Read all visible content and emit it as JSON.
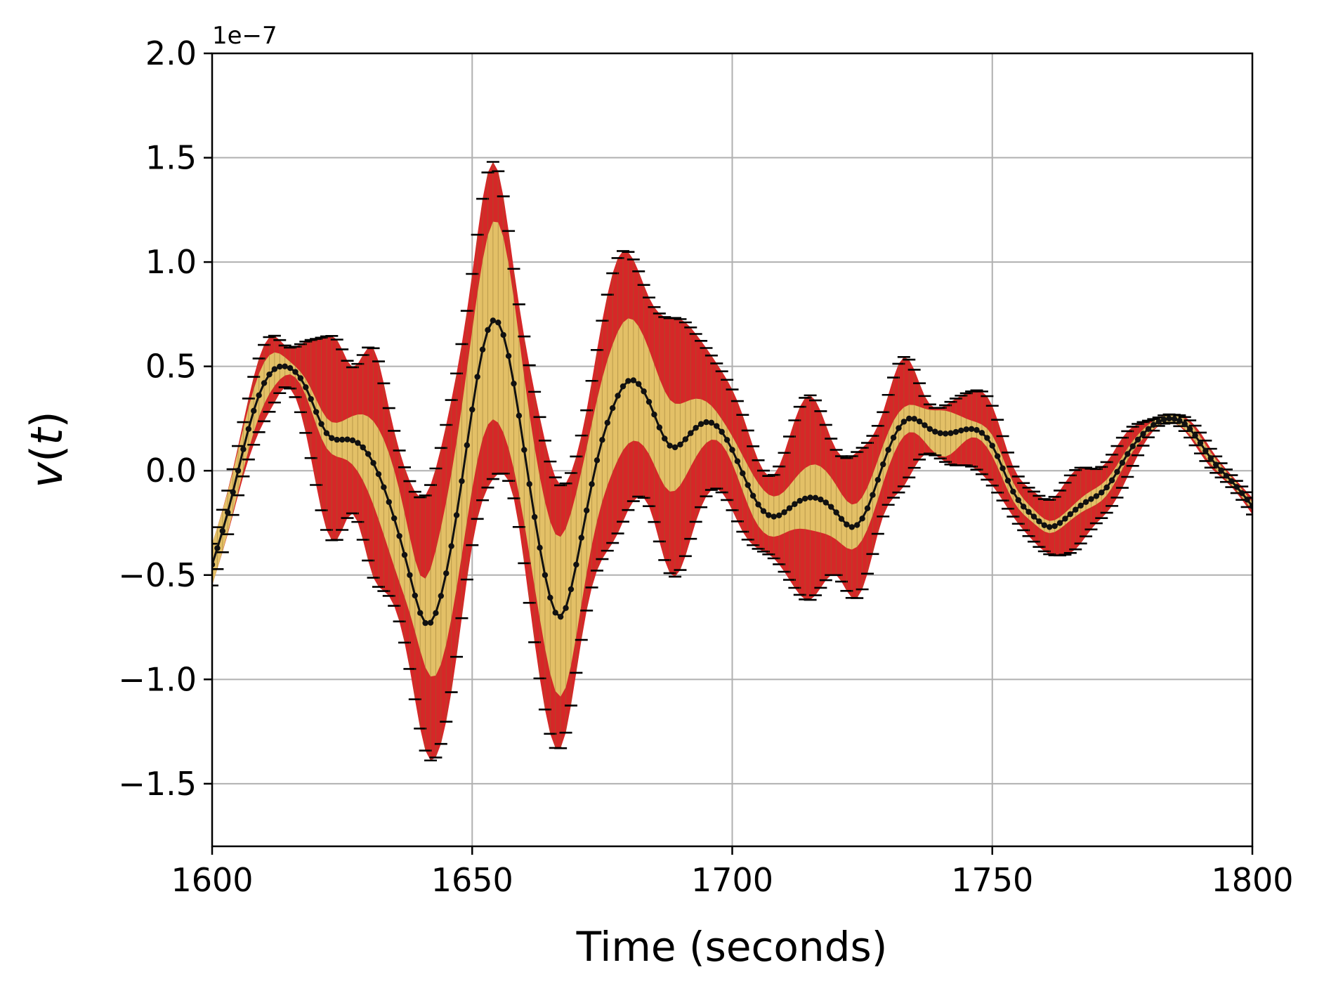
{
  "chart_data": {
    "type": "line",
    "xlabel": "Time (seconds)",
    "ylabel_func": "v",
    "ylabel_arg": "t",
    "y_offset_label": "1e−7",
    "xlim": [
      1600,
      1800
    ],
    "ylim": [
      -1.8,
      2.0
    ],
    "y_scale_exponent": -7,
    "grid": true,
    "x_ticks": [
      1600,
      1650,
      1700,
      1750,
      1800
    ],
    "x_tick_labels": [
      "1600",
      "1650",
      "1700",
      "1750",
      "1800"
    ],
    "y_ticks": [
      -1.5,
      -1.0,
      -0.5,
      0.0,
      0.5,
      1.0,
      1.5,
      2.0
    ],
    "y_tick_labels": [
      "−1.5",
      "−1.0",
      "−0.5",
      "0.0",
      "0.5",
      "1.0",
      "1.5",
      "2.0"
    ],
    "colors": {
      "outer_band": "#d62728",
      "inner_band": "#e3c067",
      "mean_line": "#111111",
      "error_caps": "#000000",
      "grid": "#b0b0b0"
    },
    "sample_step": 1,
    "mean_knots": {
      "x": [
        1600,
        1603,
        1607,
        1610,
        1614,
        1618,
        1622,
        1626,
        1630,
        1634,
        1638,
        1641,
        1644,
        1648,
        1651,
        1654,
        1657,
        1660,
        1664,
        1667,
        1670,
        1674,
        1677,
        1680,
        1684,
        1688,
        1692,
        1696,
        1700,
        1704,
        1708,
        1712,
        1716,
        1720,
        1723,
        1726,
        1730,
        1734,
        1738,
        1742,
        1746,
        1750,
        1754,
        1758,
        1761,
        1764,
        1768,
        1772,
        1776,
        1780,
        1784,
        1788,
        1792,
        1796,
        1800
      ],
      "y": [
        -0.45,
        -0.2,
        0.2,
        0.42,
        0.5,
        0.4,
        0.18,
        0.15,
        0.08,
        -0.15,
        -0.5,
        -0.73,
        -0.6,
        -0.05,
        0.45,
        0.72,
        0.55,
        0.1,
        -0.5,
        -0.7,
        -0.45,
        0.05,
        0.3,
        0.43,
        0.33,
        0.12,
        0.18,
        0.23,
        0.1,
        -0.12,
        -0.22,
        -0.16,
        -0.13,
        -0.2,
        -0.27,
        -0.18,
        0.1,
        0.25,
        0.2,
        0.18,
        0.2,
        0.12,
        -0.1,
        -0.22,
        -0.27,
        -0.23,
        -0.15,
        -0.08,
        0.08,
        0.2,
        0.25,
        0.2,
        0.06,
        -0.05,
        -0.17
      ]
    },
    "outer_half_width_knots": {
      "x": [
        1600,
        1606,
        1612,
        1614,
        1620,
        1624,
        1627,
        1631,
        1634,
        1638,
        1642,
        1646,
        1650,
        1654,
        1658,
        1662,
        1667,
        1672,
        1678,
        1684,
        1689,
        1693,
        1697,
        1702,
        1708,
        1715,
        1720,
        1724,
        1729,
        1733,
        1737,
        1742,
        1746,
        1749,
        1754,
        1758,
        1762,
        1766,
        1770,
        1775,
        1780,
        1785,
        1790,
        1795,
        1800
      ],
      "y": [
        0.1,
        0.13,
        0.16,
        0.1,
        0.35,
        0.48,
        0.35,
        0.55,
        0.45,
        0.45,
        0.66,
        0.7,
        0.65,
        0.76,
        0.55,
        0.6,
        0.63,
        0.48,
        0.66,
        0.5,
        0.62,
        0.45,
        0.3,
        0.28,
        0.2,
        0.49,
        0.3,
        0.35,
        0.25,
        0.31,
        0.14,
        0.15,
        0.18,
        0.2,
        0.12,
        0.12,
        0.14,
        0.19,
        0.13,
        0.12,
        0.04,
        0.02,
        0.05,
        0.03,
        0.04
      ]
    },
    "inner_half_width_knots": {
      "x": [
        1600,
        1606,
        1612,
        1615,
        1620,
        1626,
        1631,
        1636,
        1640,
        1643,
        1647,
        1651,
        1655,
        1660,
        1664,
        1668,
        1672,
        1676,
        1680,
        1684,
        1688,
        1693,
        1698,
        1704,
        1710,
        1716,
        1721,
        1726,
        1731,
        1736,
        1741,
        1746,
        1750,
        1755,
        1760,
        1765,
        1770,
        1775,
        1780,
        1785,
        1790,
        1795,
        1800
      ],
      "y": [
        0.1,
        0.1,
        0.08,
        0.03,
        0.06,
        0.1,
        0.2,
        0.22,
        0.18,
        0.3,
        0.35,
        0.4,
        0.48,
        0.35,
        0.35,
        0.38,
        0.3,
        0.3,
        0.3,
        0.25,
        0.22,
        0.14,
        0.06,
        0.1,
        0.1,
        0.16,
        0.12,
        0.1,
        0.08,
        0.07,
        0.11,
        0.04,
        0.05,
        0.04,
        0.03,
        0.03,
        0.04,
        0.03,
        0.02,
        0.02,
        0.03,
        0.02,
        0.02
      ]
    }
  }
}
